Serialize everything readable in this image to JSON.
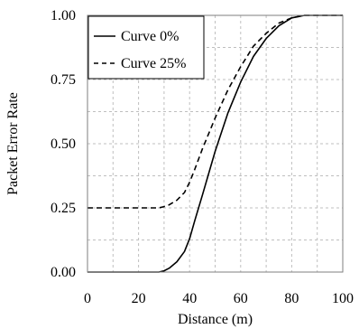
{
  "chart_data": {
    "type": "line",
    "title": "",
    "xlabel": "Distance (m)",
    "ylabel": "Packet Error Rate",
    "xlim": [
      0,
      100
    ],
    "ylim": [
      0,
      1
    ],
    "x_ticks": [
      "0",
      "20",
      "40",
      "60",
      "80",
      "100"
    ],
    "y_ticks": [
      "0.00",
      "0.25",
      "0.50",
      "0.75",
      "1.00"
    ],
    "grid": true,
    "legend_position": "top-left",
    "series": [
      {
        "name": "Curve 0%",
        "style": "solid",
        "color": "#000000",
        "x": [
          0,
          10,
          20,
          28,
          30,
          32,
          35,
          38,
          40,
          42,
          45,
          50,
          55,
          60,
          65,
          70,
          75,
          80,
          85,
          90,
          95,
          100
        ],
        "y": [
          0,
          0,
          0,
          0,
          0.005,
          0.015,
          0.04,
          0.08,
          0.13,
          0.2,
          0.3,
          0.47,
          0.62,
          0.74,
          0.84,
          0.91,
          0.96,
          0.99,
          1.0,
          1.0,
          1.0,
          1.0
        ]
      },
      {
        "name": "Curve 25%",
        "style": "dashed",
        "color": "#000000",
        "x": [
          0,
          10,
          20,
          28,
          30,
          32,
          35,
          38,
          40,
          42,
          45,
          50,
          55,
          60,
          65,
          70,
          75,
          80,
          85,
          90,
          95,
          100
        ],
        "y": [
          0.25,
          0.25,
          0.25,
          0.25,
          0.255,
          0.262,
          0.28,
          0.31,
          0.35,
          0.4,
          0.48,
          0.6,
          0.71,
          0.8,
          0.88,
          0.93,
          0.97,
          0.99,
          1.0,
          1.0,
          1.0,
          1.0
        ]
      }
    ]
  }
}
